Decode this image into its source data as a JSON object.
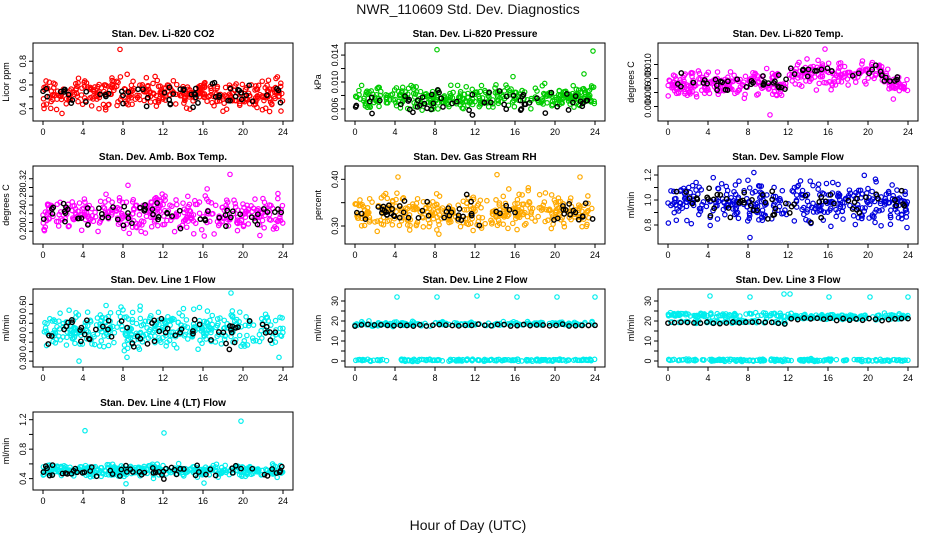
{
  "title": "NWR_110609  Std. Dev. Diagnostics",
  "xlabel": "Hour of Day (UTC)",
  "chart_data": [
    {
      "type": "scatter",
      "title": "Stan. Dev. Li-820 CO2",
      "ylabel": "Licor ppm",
      "color": "#ff0000",
      "xlim": [
        0,
        24
      ],
      "ylim": [
        0.33,
        0.92
      ],
      "xticks": [
        0,
        4,
        8,
        12,
        16,
        20,
        24
      ],
      "yticks": [
        0.4,
        0.5,
        0.6,
        0.7,
        0.8
      ],
      "ytick_labels": [
        "0.4",
        "",
        "0.6",
        "",
        "0.8"
      ],
      "base": 0.53,
      "spread": 0.06,
      "black": 0.52,
      "black_spread": 0.05,
      "outliers": [
        [
          1.9,
          0.36
        ],
        [
          5.6,
          0.4
        ],
        [
          7.7,
          0.9
        ],
        [
          21.4,
          0.41
        ],
        [
          23.8,
          0.38
        ]
      ]
    },
    {
      "type": "scatter",
      "title": "Stan. Dev. Li-820 Pressure",
      "ylabel": "kPa",
      "color": "#00cc00",
      "xlim": [
        0,
        24
      ],
      "ylim": [
        0.0048,
        0.0152
      ],
      "xticks": [
        0,
        4,
        8,
        12,
        16,
        20,
        24
      ],
      "yticks": [
        0.006,
        0.008,
        0.01,
        0.012,
        0.014
      ],
      "ytick_labels": [
        "0.006",
        "",
        "0.010",
        "",
        "0.014"
      ],
      "base": 0.0075,
      "spread": 0.0008,
      "black": 0.007,
      "black_spread": 0.0008,
      "outliers": [
        [
          8.2,
          0.0148
        ],
        [
          23.8,
          0.0146
        ],
        [
          22.9,
          0.0112
        ],
        [
          15.8,
          0.0108
        ]
      ]
    },
    {
      "type": "scatter",
      "title": "Stan. Dev. Li-820 Temp.",
      "ylabel": "degrees C",
      "color": "#ff00ff",
      "xlim": [
        0,
        24
      ],
      "ylim": [
        0.0025,
        0.0125
      ],
      "xticks": [
        0,
        4,
        8,
        12,
        16,
        20,
        24
      ],
      "yticks": [
        0.004,
        0.006,
        0.008,
        0.01
      ],
      "ytick_labels": [
        "0.004",
        "0.006",
        "0.008",
        "0.010"
      ],
      "base": 0.0072,
      "spread": 0.0009,
      "black": 0.0072,
      "black_spread": 0.0006,
      "outliers": [
        [
          10.2,
          0.0028
        ],
        [
          15.7,
          0.0122
        ]
      ]
    },
    {
      "type": "scatter",
      "title": "Stan. Dev. Amb. Box Temp.",
      "ylabel": "degrees C",
      "color": "#ff00ff",
      "xlim": [
        0,
        24
      ],
      "ylim": [
        0.18,
        0.34
      ],
      "xticks": [
        0,
        4,
        8,
        12,
        16,
        20,
        24
      ],
      "yticks": [
        0.2,
        0.22,
        0.24,
        0.26,
        0.28,
        0.3,
        0.32
      ],
      "ytick_labels": [
        "0.20",
        "",
        "0.24",
        "",
        "0.28",
        "",
        "0.32"
      ],
      "base": 0.24,
      "spread": 0.02,
      "black": 0.24,
      "black_spread": 0.015,
      "outliers": [
        [
          18.7,
          0.33
        ],
        [
          8.5,
          0.305
        ]
      ]
    },
    {
      "type": "scatter",
      "title": "Stan. Dev. Gas Stream RH",
      "ylabel": "percent",
      "color": "#ffaa00",
      "xlim": [
        0,
        24
      ],
      "ylim": [
        0.27,
        0.42
      ],
      "xticks": [
        0,
        4,
        8,
        12,
        16,
        20,
        24
      ],
      "yticks": [
        0.3,
        0.35,
        0.4
      ],
      "ytick_labels": [
        "0.30",
        "",
        "0.40"
      ],
      "base": 0.33,
      "spread": 0.018,
      "black": 0.33,
      "black_spread": 0.015,
      "outliers": [
        [
          14.2,
          0.41
        ],
        [
          4.3,
          0.405
        ],
        [
          22.5,
          0.405
        ]
      ]
    },
    {
      "type": "scatter",
      "title": "Stan. Dev. Sample Flow",
      "ylabel": "ml/min",
      "color": "#0000dd",
      "xlim": [
        0,
        24
      ],
      "ylim": [
        0.68,
        1.24
      ],
      "xticks": [
        0,
        4,
        8,
        12,
        16,
        20,
        24
      ],
      "yticks": [
        0.8,
        0.9,
        1.0,
        1.1,
        1.2
      ],
      "ytick_labels": [
        "0.8",
        "",
        "1.0",
        "",
        "1.2"
      ],
      "base": 0.98,
      "spread": 0.08,
      "black": 0.98,
      "black_spread": 0.06,
      "outliers": [
        [
          8.2,
          0.7
        ],
        [
          23.9,
          0.78
        ]
      ]
    },
    {
      "type": "scatter",
      "title": "Stan. Dev. Line 1 Flow",
      "ylabel": "ml/min",
      "color": "#00eeee",
      "xlim": [
        0,
        24
      ],
      "ylim": [
        0.29,
        0.66
      ],
      "xticks": [
        0,
        4,
        8,
        12,
        16,
        20,
        24
      ],
      "yticks": [
        0.3,
        0.35,
        0.4,
        0.45,
        0.5,
        0.55,
        0.6
      ],
      "ytick_labels": [
        "0.30",
        "",
        "0.40",
        "",
        "0.50",
        "",
        "0.60"
      ],
      "base": 0.47,
      "spread": 0.05,
      "black": 0.46,
      "black_spread": 0.05,
      "outliers": [
        [
          18.8,
          0.66
        ],
        [
          3.6,
          0.3
        ],
        [
          8.4,
          0.32
        ],
        [
          23.6,
          0.32
        ]
      ]
    },
    {
      "type": "scatter",
      "title": "Stan. Dev. Line 2 Flow",
      "ylabel": "ml/min",
      "color": "#00eeee",
      "xlim": [
        0,
        24
      ],
      "ylim": [
        -1,
        34
      ],
      "xticks": [
        0,
        4,
        8,
        12,
        16,
        20,
        24
      ],
      "yticks": [
        0,
        5,
        10,
        15,
        20,
        25,
        30
      ],
      "ytick_labels": [
        "0",
        "",
        "10",
        "",
        "20",
        "",
        "30"
      ],
      "bands": [
        {
          "y": 18.6,
          "spread": 0.5,
          "black": true
        },
        {
          "y": 0.4,
          "spread": 0.3,
          "black": false
        }
      ],
      "outliers": [
        [
          4.2,
          32
        ],
        [
          8.2,
          32
        ],
        [
          12.2,
          32.5
        ],
        [
          16.2,
          32
        ],
        [
          20.2,
          32
        ],
        [
          24,
          32
        ]
      ]
    },
    {
      "type": "scatter",
      "title": "Stan. Dev. Line 3 Flow",
      "ylabel": "ml/min",
      "color": "#00eeee",
      "xlim": [
        0,
        24
      ],
      "ylim": [
        -1,
        34
      ],
      "xticks": [
        0,
        4,
        8,
        12,
        16,
        20,
        24
      ],
      "yticks": [
        0,
        5,
        10,
        15,
        20,
        25,
        30
      ],
      "ytick_labels": [
        "0",
        "",
        "10",
        "",
        "20",
        "",
        "30"
      ],
      "bands3": true,
      "outliers": [
        [
          4.2,
          32.5
        ],
        [
          8.2,
          32
        ],
        [
          11.6,
          33.5
        ],
        [
          12.2,
          33.5
        ],
        [
          16.1,
          32
        ],
        [
          20.2,
          32
        ],
        [
          24,
          32
        ]
      ]
    },
    {
      "type": "scatter",
      "title": "Stan. Dev. Line 4 (LT) Flow",
      "ylabel": "ml/min",
      "color": "#00eeee",
      "xlim": [
        0,
        24
      ],
      "ylim": [
        0.3,
        1.25
      ],
      "xticks": [
        0,
        4,
        8,
        12,
        16,
        20,
        24
      ],
      "yticks": [
        0.4,
        0.6,
        0.8,
        1.0,
        1.2
      ],
      "ytick_labels": [
        "0.4",
        "",
        "0.8",
        "",
        "1.2"
      ],
      "base": 0.51,
      "spread": 0.04,
      "black": 0.5,
      "black_spread": 0.04,
      "outliers": [
        [
          4.2,
          1.05
        ],
        [
          12.1,
          1.02
        ],
        [
          19.8,
          1.18
        ],
        [
          8.3,
          0.33
        ],
        [
          16.1,
          0.34
        ]
      ]
    }
  ]
}
